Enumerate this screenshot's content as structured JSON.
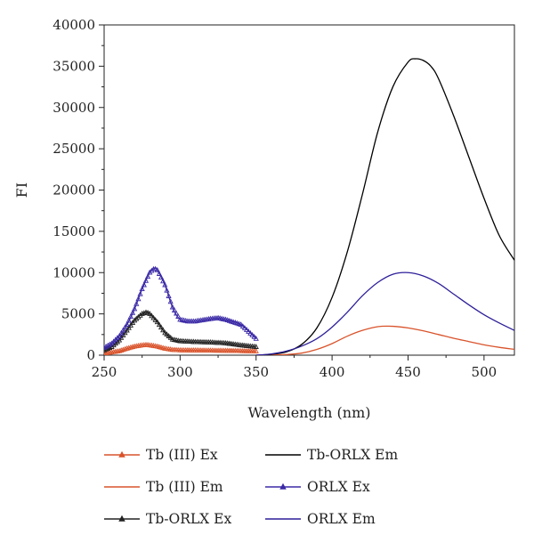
{
  "chart_data": {
    "type": "line",
    "title": "",
    "xlabel": "Wavelength (nm)",
    "ylabel": "FI",
    "xlim": [
      250,
      520
    ],
    "ylim": [
      0,
      40000
    ],
    "xticks": [
      250,
      300,
      350,
      400,
      450,
      500
    ],
    "yticks": [
      0,
      5000,
      10000,
      15000,
      20000,
      25000,
      30000,
      35000,
      40000
    ],
    "grid": false,
    "legend_placement": "bottom",
    "series": [
      {
        "name": "Tb (III) Ex",
        "color": "#d9532b",
        "style": "line-triangles",
        "x": [
          250,
          255,
          260,
          265,
          270,
          275,
          278,
          280,
          285,
          290,
          295,
          300,
          310,
          320,
          330,
          340,
          350
        ],
        "y": [
          200,
          350,
          500,
          800,
          1050,
          1200,
          1250,
          1200,
          1050,
          800,
          650,
          600,
          580,
          560,
          540,
          500,
          480
        ]
      },
      {
        "name": "Tb (III) Em",
        "color": "#d9532b",
        "style": "line",
        "x": [
          350,
          360,
          370,
          380,
          390,
          400,
          410,
          420,
          430,
          440,
          450,
          460,
          470,
          480,
          490,
          500,
          510,
          520
        ],
        "y": [
          0,
          20,
          80,
          250,
          700,
          1400,
          2300,
          3000,
          3450,
          3500,
          3300,
          2950,
          2500,
          2050,
          1650,
          1250,
          950,
          700
        ]
      },
      {
        "name": "Tb-ORLX Ex",
        "color": "#222222",
        "style": "line-triangles",
        "x": [
          250,
          255,
          260,
          265,
          270,
          275,
          278,
          280,
          285,
          290,
          295,
          300,
          310,
          320,
          330,
          340,
          350
        ],
        "y": [
          600,
          1000,
          1800,
          3000,
          4200,
          5000,
          5200,
          5000,
          4000,
          2700,
          1900,
          1700,
          1600,
          1550,
          1450,
          1200,
          1000
        ]
      },
      {
        "name": "Tb-ORLX Em",
        "color": "#000000",
        "style": "line",
        "x": [
          350,
          360,
          370,
          380,
          390,
          400,
          410,
          420,
          430,
          440,
          450,
          455,
          460,
          465,
          470,
          480,
          490,
          500,
          510,
          520
        ],
        "y": [
          0,
          100,
          400,
          1300,
          3300,
          7000,
          12500,
          19500,
          27000,
          32500,
          35500,
          35900,
          35700,
          35000,
          33500,
          29000,
          24000,
          19000,
          14500,
          11500
        ]
      },
      {
        "name": "ORLX Ex",
        "color": "#3b2aa6",
        "style": "line-triangles",
        "x": [
          250,
          255,
          260,
          265,
          270,
          275,
          280,
          283,
          285,
          290,
          295,
          300,
          305,
          310,
          320,
          325,
          330,
          340,
          350
        ],
        "y": [
          900,
          1400,
          2300,
          3700,
          5600,
          8000,
          10000,
          10500,
          10300,
          8500,
          5800,
          4300,
          4100,
          4100,
          4400,
          4500,
          4300,
          3700,
          2000
        ]
      },
      {
        "name": "ORLX Em",
        "color": "#2d1f99",
        "style": "line",
        "x": [
          350,
          360,
          370,
          380,
          390,
          400,
          410,
          420,
          430,
          440,
          450,
          460,
          470,
          480,
          490,
          500,
          510,
          520
        ],
        "y": [
          0,
          150,
          500,
          1100,
          2000,
          3400,
          5200,
          7200,
          8800,
          9800,
          10000,
          9600,
          8700,
          7400,
          6100,
          4900,
          3900,
          3000
        ]
      }
    ]
  }
}
